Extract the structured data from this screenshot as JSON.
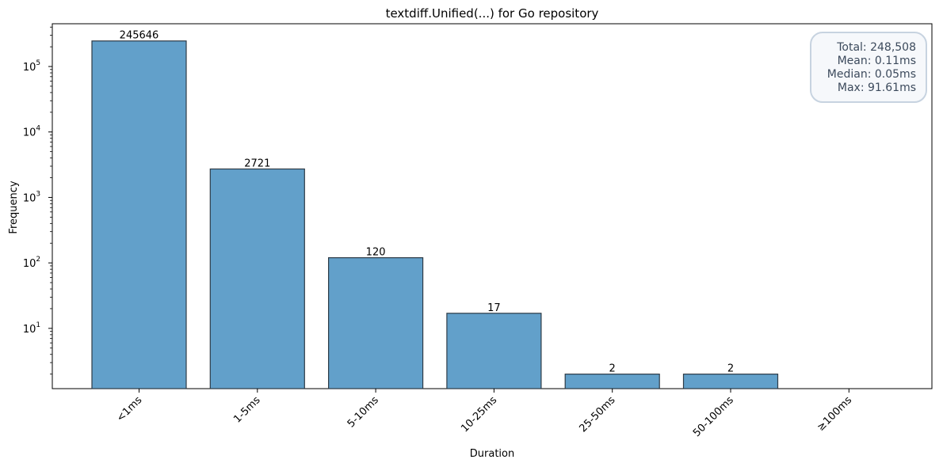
{
  "chart_data": {
    "type": "bar",
    "title": "textdiff.Unified(...) for Go repository",
    "xlabel": "Duration",
    "ylabel": "Frequency",
    "yscale": "log",
    "ylim": [
      1.2,
      450000
    ],
    "grid": false,
    "categories": [
      "<1ms",
      "1-5ms",
      "5-10ms",
      "10-25ms",
      "25-50ms",
      "50-100ms",
      "≥100ms"
    ],
    "values": [
      245646,
      2721,
      120,
      17,
      2,
      2,
      0
    ],
    "data_labels": [
      "245646",
      "2721",
      "120",
      "17",
      "2",
      "2",
      ""
    ],
    "bar_color": "#62a0ca",
    "bar_edge_color": "#2e3b46",
    "yticks": [
      {
        "value": 10,
        "base": "10",
        "exp": "1"
      },
      {
        "value": 100,
        "base": "10",
        "exp": "2"
      },
      {
        "value": 1000,
        "base": "10",
        "exp": "3"
      },
      {
        "value": 10000,
        "base": "10",
        "exp": "4"
      },
      {
        "value": 100000,
        "base": "10",
        "exp": "5"
      }
    ]
  },
  "stats": {
    "total": "Total: 248,508",
    "mean": "Mean: 0.11ms",
    "median": "Median: 0.05ms",
    "max": "Max: 91.61ms"
  }
}
